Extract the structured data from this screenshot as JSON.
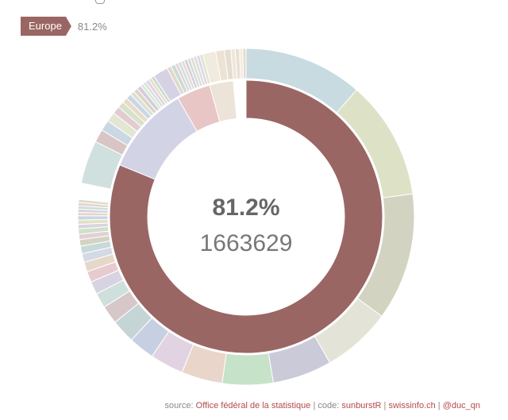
{
  "breadcrumb": {
    "label": "Europe",
    "percent": "81.2%"
  },
  "center": {
    "percent": "81.2%",
    "value": "1663629"
  },
  "source": {
    "prefix": "source: ",
    "ofs": "Office fédéral de la statistique",
    "sep1": " | code: ",
    "code": "sunburstR",
    "sep2": " | ",
    "site": "swissinfo.ch",
    "sep3": " | ",
    "handle": "@duc_qn"
  },
  "chart_data": {
    "type": "sunburst",
    "title": "",
    "inner": [
      {
        "fraction": 0.812,
        "color": "#9a6663"
      },
      {
        "fraction": 0.105,
        "color": "#d3d3e6"
      },
      {
        "fraction": 0.04,
        "color": "#e8c6c6"
      },
      {
        "fraction": 0.028,
        "color": "#ece3d9"
      },
      {
        "fraction": 0.015,
        "color": "#ffffff"
      }
    ],
    "outer": [
      {
        "fraction": 0.11,
        "color": "#c7dbe0"
      },
      {
        "fraction": 0.11,
        "color": "#dde2c7"
      },
      {
        "fraction": 0.118,
        "color": "#d3d3c1"
      },
      {
        "fraction": 0.064,
        "color": "#e3e4d7"
      },
      {
        "fraction": 0.055,
        "color": "#cacad9"
      },
      {
        "fraction": 0.047,
        "color": "#c6e2c8"
      },
      {
        "fraction": 0.038,
        "color": "#ead5cb"
      },
      {
        "fraction": 0.031,
        "color": "#e2d3e2"
      },
      {
        "fraction": 0.024,
        "color": "#c6d0e2"
      },
      {
        "fraction": 0.022,
        "color": "#c5d4d4"
      },
      {
        "fraction": 0.017,
        "color": "#d6c8c8"
      },
      {
        "fraction": 0.014,
        "color": "#cfe0dc"
      },
      {
        "fraction": 0.012,
        "color": "#d7d3e3"
      },
      {
        "fraction": 0.01,
        "color": "#e7cccf"
      },
      {
        "fraction": 0.009,
        "color": "#e6d8c8"
      },
      {
        "fraction": 0.008,
        "color": "#d4d9e6"
      },
      {
        "fraction": 0.007,
        "color": "#c8d9d9"
      },
      {
        "fraction": 0.006,
        "color": "#d3d3c1"
      },
      {
        "fraction": 0.005,
        "color": "#e3cfd7"
      },
      {
        "fraction": 0.005,
        "color": "#cde2c8"
      },
      {
        "fraction": 0.004,
        "color": "#d9d3e2"
      },
      {
        "fraction": 0.004,
        "color": "#e4e0c6"
      },
      {
        "fraction": 0.004,
        "color": "#c6d8e2"
      },
      {
        "fraction": 0.003,
        "color": "#ead3c6"
      },
      {
        "fraction": 0.003,
        "color": "#d2d2e2"
      },
      {
        "fraction": 0.003,
        "color": "#cbe0d6"
      },
      {
        "fraction": 0.003,
        "color": "#e6d2d2"
      },
      {
        "fraction": 0.003,
        "color": "#dcdcc8"
      },
      {
        "fraction": 0.015,
        "color": "#ffffff"
      },
      {
        "fraction": 0.04,
        "color": "#cfe0df"
      },
      {
        "fraction": 0.012,
        "color": "#d9c5c5"
      },
      {
        "fraction": 0.01,
        "color": "#c9d8e2"
      },
      {
        "fraction": 0.009,
        "color": "#e3e6d3"
      },
      {
        "fraction": 0.007,
        "color": "#e2ccd2"
      },
      {
        "fraction": 0.006,
        "color": "#d6e2c9"
      },
      {
        "fraction": 0.005,
        "color": "#e6dcc8"
      },
      {
        "fraction": 0.005,
        "color": "#cdd6e6"
      },
      {
        "fraction": 0.004,
        "color": "#d8e2d8"
      },
      {
        "fraction": 0.004,
        "color": "#e2d2c6"
      },
      {
        "fraction": 0.004,
        "color": "#cfcfe0"
      },
      {
        "fraction": 0.003,
        "color": "#e0e6cf"
      },
      {
        "fraction": 0.003,
        "color": "#d2e2e6"
      },
      {
        "fraction": 0.003,
        "color": "#e6cfdc"
      },
      {
        "fraction": 0.003,
        "color": "#dfe2d2"
      },
      {
        "fraction": 0.003,
        "color": "#ccd9cc"
      },
      {
        "fraction": 0.014,
        "color": "#d6d2e4"
      },
      {
        "fraction": 0.004,
        "color": "#e2d8c8"
      },
      {
        "fraction": 0.004,
        "color": "#c8dcd8"
      },
      {
        "fraction": 0.003,
        "color": "#e6d3d3"
      },
      {
        "fraction": 0.003,
        "color": "#d2dce6"
      },
      {
        "fraction": 0.003,
        "color": "#e0e0cc"
      },
      {
        "fraction": 0.003,
        "color": "#d8cce2"
      },
      {
        "fraction": 0.003,
        "color": "#cce2d6"
      },
      {
        "fraction": 0.003,
        "color": "#e6dcd2"
      },
      {
        "fraction": 0.003,
        "color": "#d6e0e6"
      },
      {
        "fraction": 0.003,
        "color": "#e2d6dc"
      },
      {
        "fraction": 0.003,
        "color": "#dce6d2"
      },
      {
        "fraction": 0.012,
        "color": "#f1eadf"
      },
      {
        "fraction": 0.008,
        "color": "#ece3d3"
      },
      {
        "fraction": 0.006,
        "color": "#e6ddd0"
      },
      {
        "fraction": 0.004,
        "color": "#efe6d9"
      },
      {
        "fraction": 0.004,
        "color": "#e8e0d6"
      },
      {
        "fraction": 0.003,
        "color": "#f2ebe0"
      },
      {
        "fraction": 0.003,
        "color": "#e4dccf"
      }
    ]
  }
}
